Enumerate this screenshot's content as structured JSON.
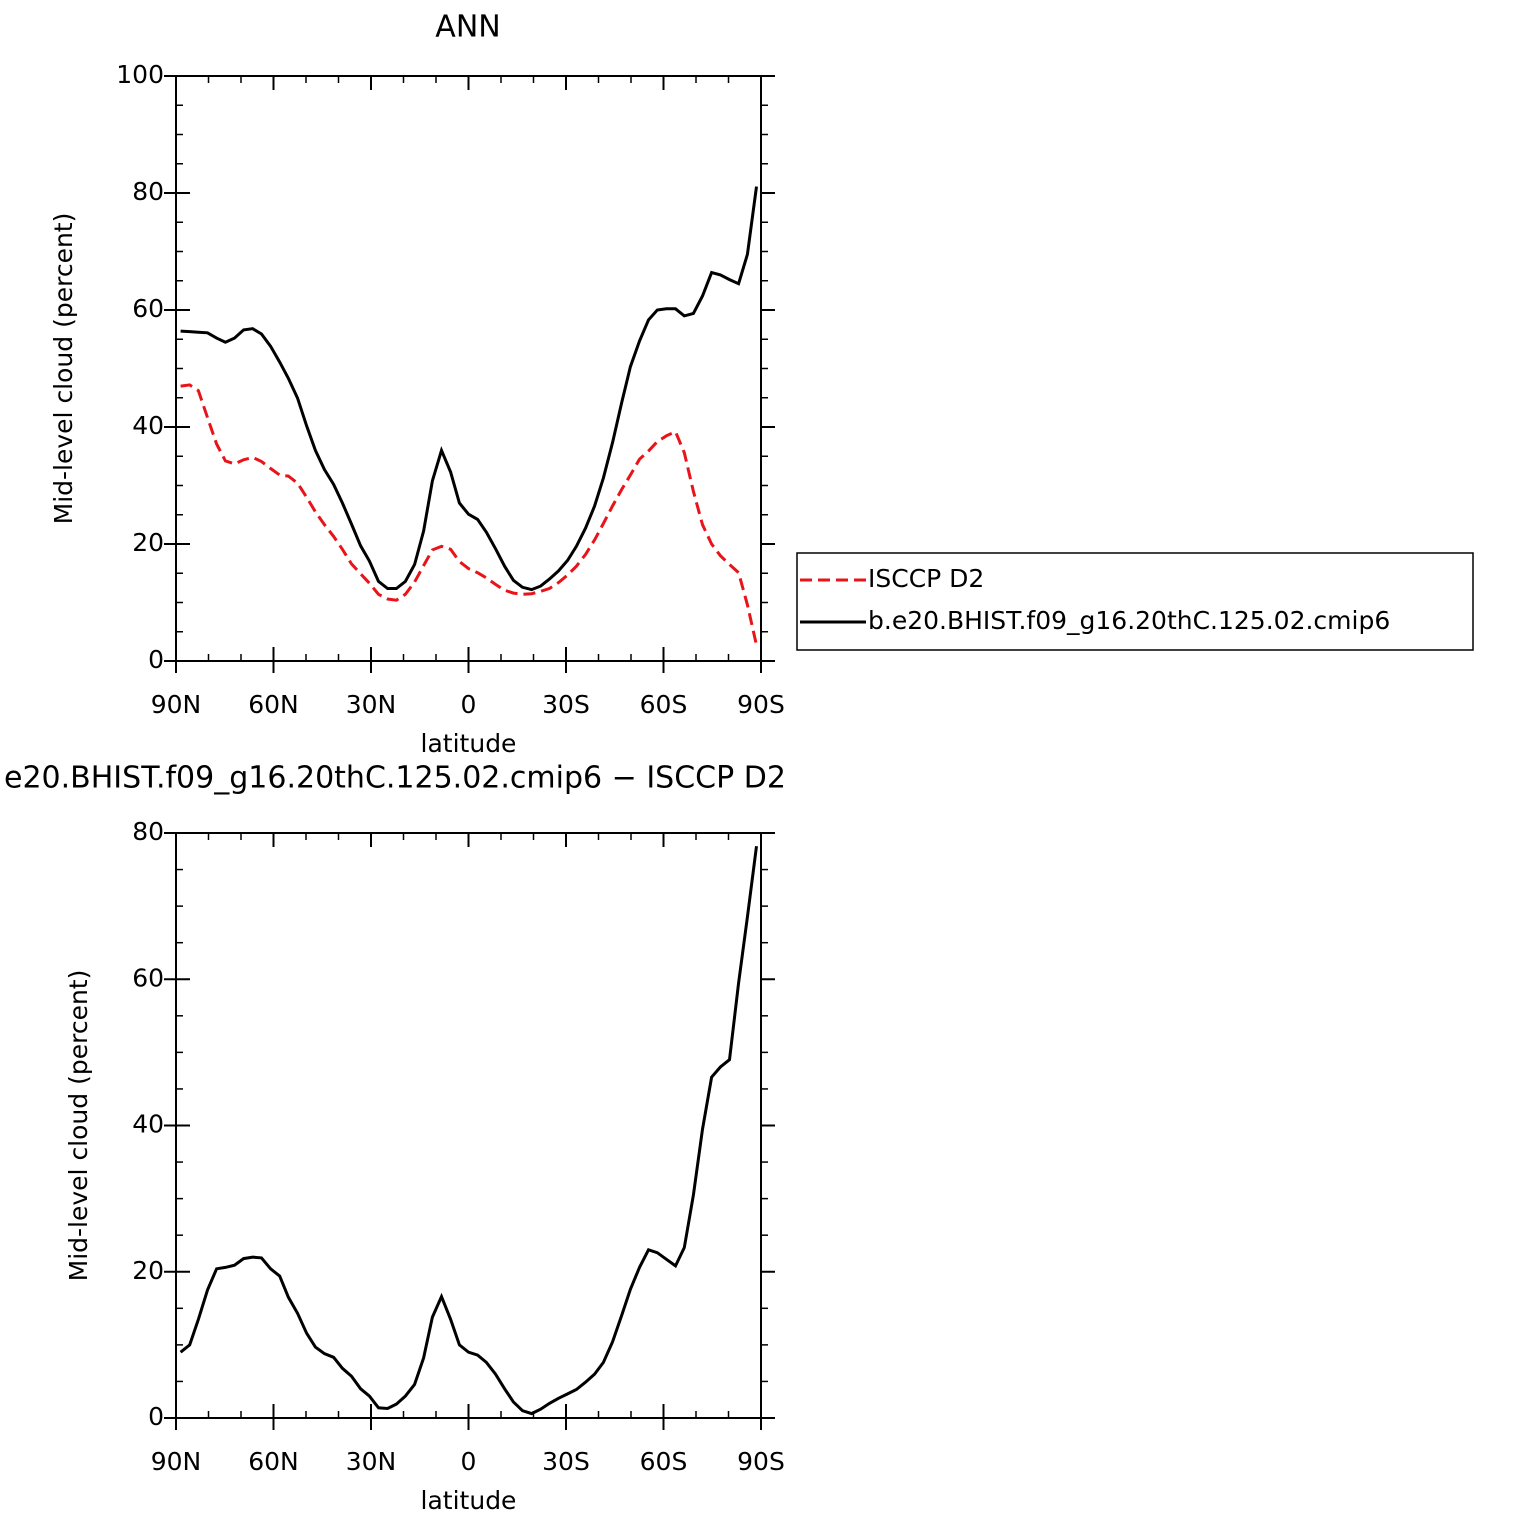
{
  "chart_data": [
    {
      "type": "line",
      "title": "ANN",
      "xlabel": "latitude",
      "ylabel": "Mid-level cloud (percent)",
      "x": [
        88.6,
        85.8,
        83.1,
        80.3,
        77.5,
        74.8,
        72.0,
        69.2,
        66.4,
        63.7,
        60.9,
        58.1,
        55.4,
        52.6,
        49.8,
        47.1,
        44.3,
        41.5,
        38.8,
        36.0,
        33.2,
        30.5,
        27.7,
        24.9,
        22.2,
        19.4,
        16.6,
        13.8,
        11.1,
        8.3,
        5.5,
        2.8,
        0,
        -2.8,
        -5.5,
        -8.3,
        -11.1,
        -13.8,
        -16.6,
        -19.4,
        -22.2,
        -24.9,
        -27.7,
        -30.5,
        -33.2,
        -36.0,
        -38.8,
        -41.5,
        -44.3,
        -47.1,
        -49.8,
        -52.6,
        -55.4,
        -58.1,
        -60.9,
        -63.7,
        -66.4,
        -69.2,
        -72.0,
        -74.8,
        -77.5,
        -80.3,
        -83.1,
        -85.8,
        -88.6
      ],
      "series": [
        {
          "name": "ISCCP D2",
          "color": "#e8141a",
          "dash": true,
          "values": [
            47.0,
            47.2,
            46.2,
            41.6,
            37.1,
            34.2,
            33.7,
            34.4,
            34.8,
            34.1,
            32.9,
            31.8,
            31.6,
            30.4,
            28.0,
            25.5,
            23.3,
            21.3,
            19.1,
            16.6,
            14.9,
            13.3,
            11.4,
            10.6,
            10.4,
            11.4,
            13.5,
            16.3,
            19.0,
            19.6,
            19.1,
            17.0,
            15.8,
            15.1,
            14.2,
            13.1,
            12.1,
            11.6,
            11.4,
            11.5,
            11.9,
            12.4,
            13.4,
            14.7,
            16.2,
            18.2,
            20.7,
            23.5,
            26.5,
            29.3,
            31.8,
            34.5,
            35.9,
            37.5,
            38.5,
            39.2,
            35.6,
            29.0,
            23.3,
            20.0,
            18.0,
            16.5,
            15.1,
            9.6,
            2.7
          ]
        },
        {
          "name": "b.e20.BHIST.f09_g16.20thC.125.02.cmip6",
          "color": "#000000",
          "dash": false,
          "values": [
            56.4,
            56.3,
            56.2,
            56.1,
            55.2,
            54.5,
            55.2,
            56.6,
            56.8,
            55.9,
            53.8,
            51.1,
            48.3,
            44.9,
            40.2,
            36.0,
            32.7,
            30.2,
            27.0,
            23.4,
            19.7,
            17.1,
            13.6,
            12.4,
            12.4,
            13.6,
            16.5,
            22.2,
            30.8,
            36.0,
            32.3,
            27.0,
            25.1,
            24.2,
            22.0,
            19.2,
            16.2,
            13.8,
            12.6,
            12.2,
            12.8,
            14.0,
            15.4,
            17.2,
            19.6,
            22.7,
            26.5,
            31.3,
            37.3,
            44.1,
            50.3,
            54.7,
            58.3,
            60.0,
            60.2,
            60.2,
            59.0,
            59.4,
            62.4,
            66.4,
            66.0,
            65.2,
            64.5,
            69.5,
            81.1
          ]
        }
      ],
      "xlim": [
        90,
        -90
      ],
      "xticks": [
        {
          "value": 90,
          "label": "90N"
        },
        {
          "value": 60,
          "label": "60N"
        },
        {
          "value": 30,
          "label": "30N"
        },
        0,
        {
          "value": -30,
          "label": "30S"
        },
        {
          "value": -60,
          "label": "60S"
        },
        {
          "value": -90,
          "label": "90S"
        }
      ],
      "xminorticks": [
        80,
        70,
        50,
        40,
        20,
        10,
        -10,
        -20,
        -40,
        -50,
        -70,
        -80
      ],
      "ylim": [
        0,
        100
      ],
      "yticks": [
        0,
        20,
        40,
        60,
        80,
        100
      ],
      "yminorticks": [
        5,
        10,
        15,
        25,
        30,
        35,
        45,
        50,
        55,
        65,
        70,
        75,
        85,
        90,
        95
      ],
      "legend": "right"
    },
    {
      "type": "line",
      "title": "e20.BHIST.f09_g16.20thC.125.02.cmip6 − ISCCP D2",
      "xlabel": "latitude",
      "ylabel": "Mid-level cloud (percent)",
      "x": [
        88.6,
        85.8,
        83.1,
        80.3,
        77.5,
        74.8,
        72.0,
        69.2,
        66.4,
        63.7,
        60.9,
        58.1,
        55.4,
        52.6,
        49.8,
        47.1,
        44.3,
        41.5,
        38.8,
        36.0,
        33.2,
        30.5,
        27.7,
        24.9,
        22.2,
        19.4,
        16.6,
        13.8,
        11.1,
        8.3,
        5.5,
        2.8,
        0,
        -2.8,
        -5.5,
        -8.3,
        -11.1,
        -13.8,
        -16.6,
        -19.4,
        -22.2,
        -24.9,
        -27.7,
        -30.5,
        -33.2,
        -36.0,
        -38.8,
        -41.5,
        -44.3,
        -47.1,
        -49.8,
        -52.6,
        -55.4,
        -58.1,
        -60.9,
        -63.7,
        -66.4,
        -69.2,
        -72.0,
        -74.8,
        -77.5,
        -80.3,
        -83.1,
        -85.8,
        -88.6
      ],
      "series": [
        {
          "color": "#000000",
          "dash": false,
          "values": [
            9.0,
            10.0,
            13.5,
            17.5,
            20.4,
            20.6,
            20.9,
            21.8,
            22.0,
            21.9,
            20.4,
            19.4,
            16.5,
            14.3,
            11.6,
            9.7,
            8.8,
            8.3,
            6.8,
            5.7,
            4.0,
            3.0,
            1.4,
            1.3,
            1.9,
            3.0,
            4.6,
            8.2,
            13.8,
            16.6,
            13.5,
            10.0,
            9.0,
            8.6,
            7.6,
            6.0,
            4.0,
            2.2,
            1.0,
            0.6,
            1.2,
            2.0,
            2.7,
            3.3,
            3.9,
            4.9,
            6.0,
            7.6,
            10.4,
            14.0,
            17.6,
            20.6,
            23.0,
            22.6,
            21.7,
            20.8,
            23.3,
            30.5,
            39.5,
            46.6,
            48.0,
            49.0,
            59.5,
            68.5,
            78.2
          ]
        }
      ],
      "xlim": [
        90,
        -90
      ],
      "xticks": [
        {
          "value": 90,
          "label": "90N"
        },
        {
          "value": 60,
          "label": "60N"
        },
        {
          "value": 30,
          "label": "30N"
        },
        0,
        {
          "value": -30,
          "label": "30S"
        },
        {
          "value": -60,
          "label": "60S"
        },
        {
          "value": -90,
          "label": "90S"
        }
      ],
      "xminorticks": [
        80,
        70,
        50,
        40,
        20,
        10,
        -10,
        -20,
        -40,
        -50,
        -70,
        -80
      ],
      "ylim": [
        0,
        80
      ],
      "yticks": [
        0,
        20,
        40,
        60,
        80
      ],
      "yminorticks": [
        5,
        10,
        15,
        25,
        30,
        35,
        45,
        50,
        55,
        65,
        70,
        75
      ]
    }
  ]
}
